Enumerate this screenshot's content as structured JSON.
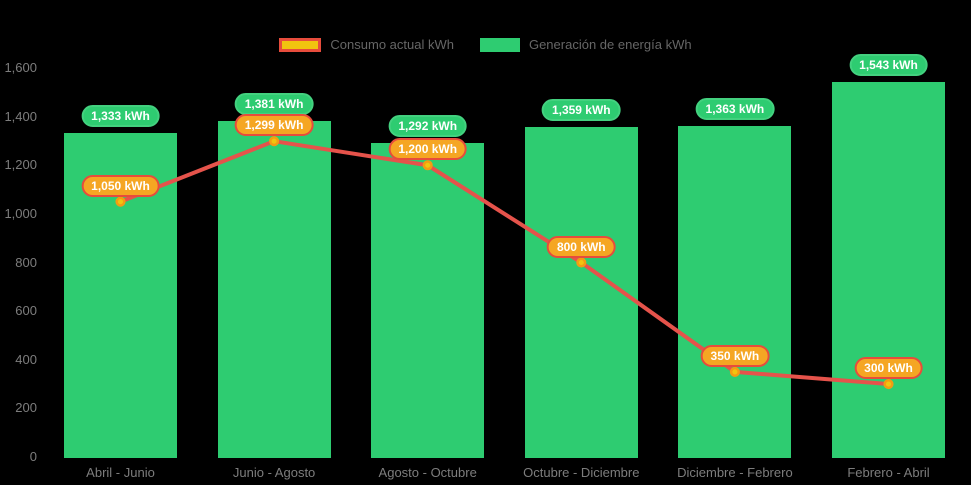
{
  "legend": {
    "items": [
      {
        "label": "Consumo actual kWh",
        "swatch_fill": "#f1c40f",
        "swatch_border": "#e74c3c"
      },
      {
        "label": "Generación de energía kWh",
        "swatch_fill": "#2ecc71",
        "swatch_border": "#2ecc71"
      }
    ]
  },
  "chart_data": {
    "type": "combo-bar-line",
    "categories": [
      "Abril - Junio",
      "Junio - Agosto",
      "Agosto - Octubre",
      "Octubre - Diciembre",
      "Diciembre - Febrero",
      "Febrero - Abril"
    ],
    "series": [
      {
        "name": "Consumo actual kWh",
        "type": "line",
        "values": [
          1050,
          1299,
          1200,
          800,
          350,
          300
        ],
        "line_color": "#e5534b",
        "point_fill": "#f1c40f",
        "point_stroke": "#f39c12",
        "label_bg": "#f5a623",
        "label_border": "#e74c3c"
      },
      {
        "name": "Generación de energía kWh",
        "type": "bar",
        "values": [
          1333,
          1381,
          1292,
          1359,
          1363,
          1543
        ],
        "bar_color": "#2ecc71",
        "label_bg": "#2ecc71",
        "label_border": "#43d17f"
      }
    ],
    "data_label_suffix": "kWh",
    "ylim": [
      0,
      1600
    ],
    "ytick_step": 200,
    "ytick_labels": [
      "0",
      "200",
      "400",
      "600",
      "800",
      "1,000",
      "1,200",
      "1,400",
      "1,600"
    ],
    "axis_text_color": "#7d7d7d",
    "legend_position": "top",
    "grid": false,
    "background": "#000000"
  }
}
